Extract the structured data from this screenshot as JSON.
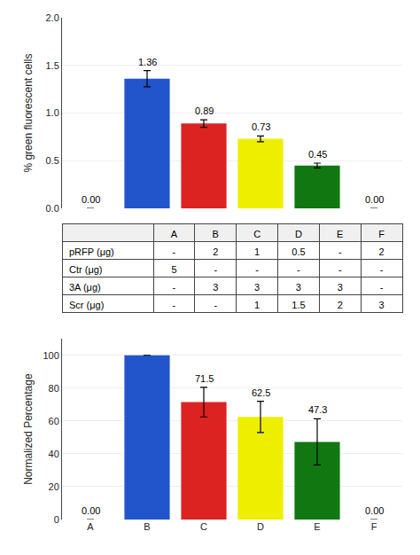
{
  "chart_data": [
    {
      "type": "bar",
      "categories": [
        "A",
        "B",
        "C",
        "D",
        "E",
        "F"
      ],
      "values": [
        0.0,
        1.36,
        0.89,
        0.73,
        0.45,
        0.0
      ],
      "value_labels": [
        "0.00",
        "1.36",
        "0.89",
        "0.73",
        "0.45",
        "0.00"
      ],
      "errors": [
        0.0,
        0.085,
        0.04,
        0.03,
        0.025,
        0.0
      ],
      "colors": [
        "white",
        "#2255CC",
        "#DD2222",
        "#EEEE00",
        "#117711",
        "white"
      ],
      "ylabel": "% green fluorescent cells",
      "ylim": [
        0.0,
        2.0
      ],
      "yticks": [
        {
          "value": 0.0,
          "label": "0.0"
        },
        0.5,
        {
          "value": 1.0,
          "label": "1.0"
        },
        1.5,
        {
          "value": 2.0,
          "label": "2.0"
        }
      ],
      "grid": true,
      "data_labels": true,
      "tick_labels": "y"
    },
    {
      "type": "table",
      "columns": [
        "A",
        "B",
        "C",
        "D",
        "E",
        "F"
      ],
      "rows": [
        {
          "name": "pRFP",
          "unit": "(μg)",
          "values": [
            "-",
            "2",
            "1",
            "0.5",
            "-",
            "2"
          ]
        },
        {
          "name": "Ctr",
          "unit": "(μg)",
          "values": [
            "5",
            "-",
            "-",
            "-",
            "-",
            "-"
          ]
        },
        {
          "name": "3A",
          "unit": "(μg)",
          "values": [
            "-",
            "3",
            "3",
            "3",
            "3",
            "-"
          ]
        },
        {
          "name": "Scr",
          "unit": "(μg)",
          "values": [
            "-",
            "-",
            "1",
            "1.5",
            "2",
            "3"
          ]
        }
      ]
    },
    {
      "type": "bar",
      "categories": [
        "A",
        "B",
        "C",
        "D",
        "E",
        "F"
      ],
      "values": [
        0.0,
        100.0,
        71.5,
        62.5,
        47.3,
        0.0
      ],
      "value_labels": [
        "0.00",
        null,
        "71.5",
        "62.5",
        "47.3",
        "0.00"
      ],
      "errors": [
        0.0,
        0.0,
        9.0,
        9.5,
        14.0,
        0.0
      ],
      "colors": [
        "white",
        "#2255CC",
        "#DD2222",
        "#EEEE00",
        "#117711",
        "white"
      ],
      "ylabel": "Normalized Percentage",
      "ylim": [
        0,
        110
      ],
      "yticks": [
        0,
        20,
        40,
        60,
        80,
        100
      ],
      "grid": true,
      "data_labels": true
    }
  ]
}
